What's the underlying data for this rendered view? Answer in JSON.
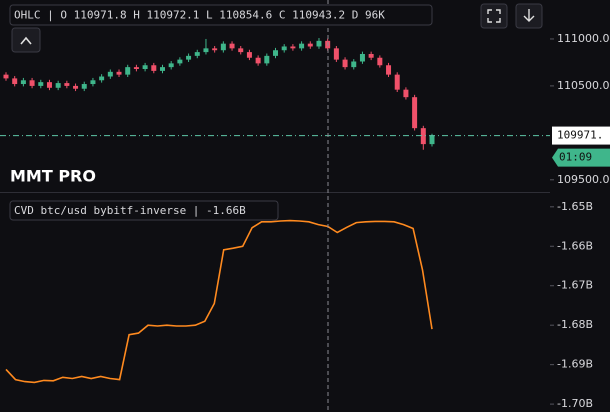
{
  "chart_data": [
    {
      "type": "candlestick",
      "legend": "OHLC | O 110971.8 H 110972.1 L 110854.6 C 110943.2 D 96K",
      "watermark": "MMT PRO",
      "last_price_label": "109971.",
      "countdown": "01:09",
      "up_color": "#3fb68b",
      "down_color": "#f0516a",
      "ylim": [
        109370,
        111415
      ],
      "yticks": [
        {
          "value": 109500,
          "label": "109500.0"
        },
        {
          "value": 110500,
          "label": "110500.0"
        },
        {
          "value": 111000,
          "label": "111000.0"
        }
      ],
      "open": [
        110620,
        110580,
        110520,
        110560,
        110500,
        110540,
        110480,
        110530,
        110500,
        110470,
        110520,
        110560,
        110600,
        110650,
        110620,
        110700,
        110680,
        110720,
        110660,
        110700,
        110740,
        110780,
        110820,
        110860,
        110900,
        110880,
        110950,
        110900,
        110860,
        110800,
        110740,
        110820,
        110880,
        110920,
        110900,
        110950,
        110920,
        110980,
        110900,
        110780,
        110700,
        110760,
        110840,
        110800,
        110720,
        110620,
        110460,
        110380,
        110050,
        109880
      ],
      "high": [
        110645,
        110605,
        110585,
        110585,
        110565,
        110565,
        110555,
        110555,
        110525,
        110545,
        110585,
        110625,
        110675,
        110675,
        110725,
        110725,
        110745,
        110745,
        110725,
        110765,
        110805,
        110845,
        110885,
        111000,
        110925,
        110975,
        110975,
        110925,
        110885,
        110825,
        110845,
        110905,
        110945,
        110945,
        110975,
        110975,
        111010,
        111005,
        110925,
        110805,
        110785,
        110865,
        110865,
        110825,
        110745,
        110645,
        110485,
        110405,
        110075,
        109990
      ],
      "low": [
        110555,
        110495,
        110495,
        110475,
        110475,
        110455,
        110455,
        110475,
        110445,
        110445,
        110495,
        110535,
        110575,
        110595,
        110595,
        110655,
        110655,
        110635,
        110635,
        110675,
        110715,
        110755,
        110795,
        110835,
        110855,
        110855,
        110875,
        110835,
        110775,
        110715,
        110715,
        110795,
        110855,
        110875,
        110875,
        110895,
        110895,
        110875,
        110755,
        110675,
        110675,
        110735,
        110775,
        110695,
        110595,
        110435,
        110355,
        110025,
        109820,
        109855
      ],
      "close": [
        110580,
        110520,
        110560,
        110500,
        110540,
        110480,
        110530,
        110500,
        110470,
        110520,
        110560,
        110600,
        110650,
        110620,
        110700,
        110680,
        110720,
        110660,
        110700,
        110740,
        110780,
        110820,
        110860,
        110900,
        110880,
        110950,
        110900,
        110860,
        110800,
        110740,
        110820,
        110880,
        110920,
        110900,
        110950,
        110920,
        110980,
        110900,
        110780,
        110700,
        110760,
        110840,
        110800,
        110720,
        110620,
        110460,
        110380,
        110050,
        109880,
        109971
      ]
    },
    {
      "type": "line",
      "title": "CVD btc/usd bybitf-inverse | -1.66B",
      "color": "#ff8a1f",
      "ylim": [
        -1.702,
        -1.6465
      ],
      "yticks": [
        {
          "value": -1.65,
          "label": "-1.65B"
        },
        {
          "value": -1.66,
          "label": "-1.66B"
        },
        {
          "value": -1.67,
          "label": "-1.67B"
        },
        {
          "value": -1.68,
          "label": "-1.68B"
        },
        {
          "value": -1.69,
          "label": "-1.69B"
        },
        {
          "value": -1.7,
          "label": "-1.70B"
        }
      ],
      "values": [
        -1.6912,
        -1.6938,
        -1.6943,
        -1.6945,
        -1.694,
        -1.6941,
        -1.6932,
        -1.6935,
        -1.693,
        -1.6935,
        -1.693,
        -1.6935,
        -1.6938,
        -1.6824,
        -1.682,
        -1.68,
        -1.6802,
        -1.68,
        -1.6802,
        -1.6802,
        -1.68,
        -1.679,
        -1.6745,
        -1.6609,
        -1.6605,
        -1.66,
        -1.6553,
        -1.6538,
        -1.6538,
        -1.6536,
        -1.6535,
        -1.6536,
        -1.6538,
        -1.6545,
        -1.655,
        -1.6565,
        -1.6552,
        -1.654,
        -1.6538,
        -1.6537,
        -1.6537,
        -1.6538,
        -1.6545,
        -1.6555,
        -1.666,
        -1.681
      ]
    }
  ]
}
